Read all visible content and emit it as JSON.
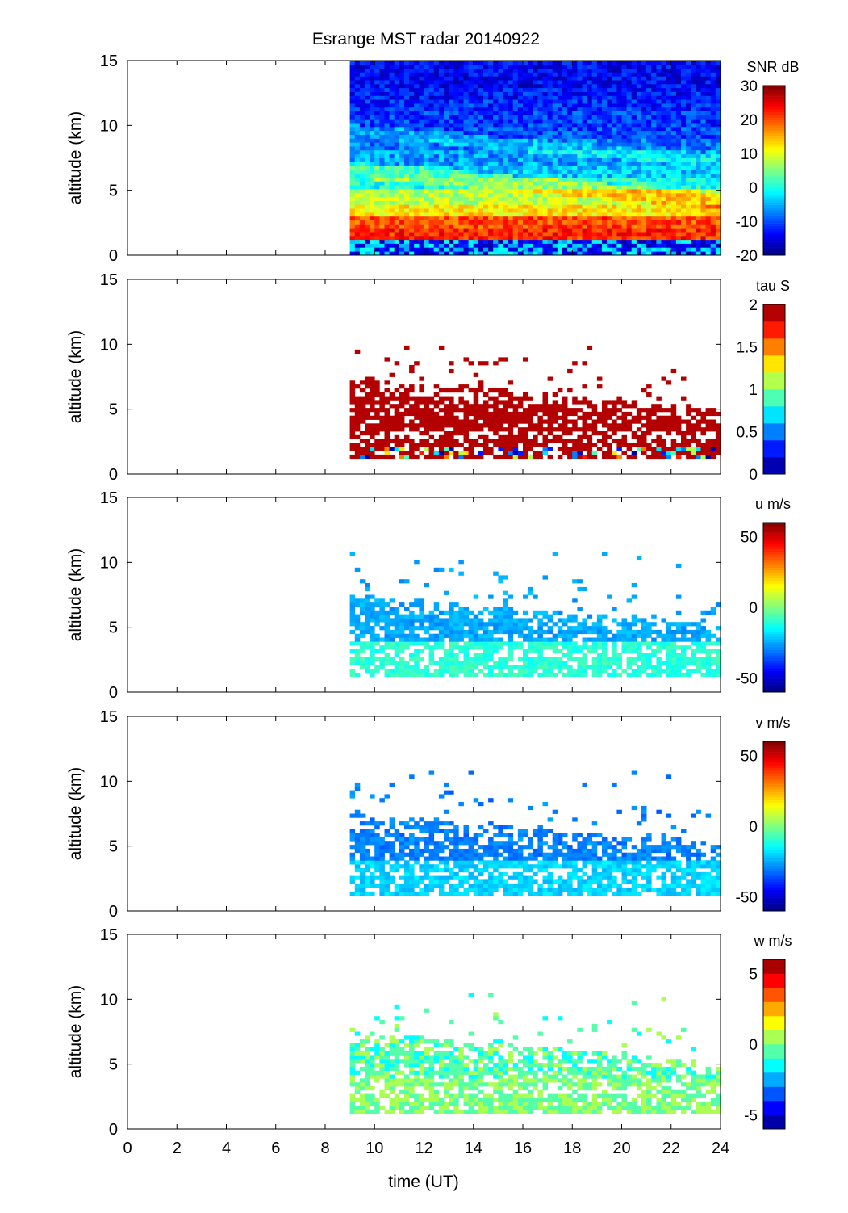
{
  "chart_data": {
    "type": "heatmap",
    "title": "Esrange MST radar 20140922",
    "xlabel": "time (UT)",
    "xlim": [
      0,
      24
    ],
    "xticks": [
      "0",
      "2",
      "4",
      "6",
      "8",
      "10",
      "12",
      "14",
      "16",
      "18",
      "20",
      "22",
      "24"
    ],
    "data_start_time": 9,
    "panels": [
      {
        "ylabel": "altitude (km)",
        "ylim": [
          0,
          15
        ],
        "yticks": [
          "0",
          "5",
          "10",
          "15"
        ],
        "colorbar_label": "SNR dB",
        "clim": [
          -20,
          30
        ],
        "cticks": [
          "30",
          "20",
          "10",
          "0",
          "-10",
          "-20"
        ],
        "cticks_values": [
          30,
          20,
          10,
          0,
          -10,
          -20
        ],
        "levels": 64,
        "coverage": "full",
        "profile_alt_km": [
          0.5,
          1.5,
          2.5,
          3.5,
          4.5,
          5.5,
          6.5,
          7.5,
          8.5,
          9.5,
          10.5,
          11.5,
          12.5,
          13.5,
          14.5
        ],
        "profile_values": [
          -12,
          22,
          20,
          12,
          8,
          0,
          -4,
          -6,
          -8,
          -10,
          -11,
          -12,
          -13,
          -14,
          -14
        ]
      },
      {
        "ylabel": "altitude (km)",
        "ylim": [
          0,
          15
        ],
        "yticks": [
          "0",
          "5",
          "10",
          "15"
        ],
        "colorbar_label": "tau S",
        "clim": [
          0,
          2
        ],
        "cticks": [
          "2",
          "1.5",
          "1",
          "0.5",
          "0"
        ],
        "cticks_values": [
          2,
          1.5,
          1,
          0.5,
          0
        ],
        "levels": 10,
        "coverage": "sparse",
        "typical_value": 2
      },
      {
        "ylabel": "altitude (km)",
        "ylim": [
          0,
          15
        ],
        "yticks": [
          "0",
          "5",
          "10",
          "15"
        ],
        "colorbar_label": "u m/s",
        "clim": [
          -60,
          60
        ],
        "cticks": [
          "50",
          "0",
          "-50"
        ],
        "cticks_values": [
          50,
          0,
          -50
        ],
        "levels": 64,
        "coverage": "sparse",
        "low_value": -10,
        "high_value": -25
      },
      {
        "ylabel": "altitude (km)",
        "ylim": [
          0,
          15
        ],
        "yticks": [
          "0",
          "5",
          "10",
          "15"
        ],
        "colorbar_label": "v m/s",
        "clim": [
          -60,
          60
        ],
        "cticks": [
          "50",
          "0",
          "-50"
        ],
        "cticks_values": [
          50,
          0,
          -50
        ],
        "levels": 64,
        "coverage": "sparse",
        "low_value": -20,
        "high_value": -30
      },
      {
        "ylabel": "altitude (km)",
        "ylim": [
          0,
          15
        ],
        "yticks": [
          "0",
          "5",
          "10",
          "15"
        ],
        "colorbar_label": "w m/s",
        "clim": [
          -6,
          6
        ],
        "cticks": [
          "5",
          "0",
          "-5"
        ],
        "cticks_values": [
          5,
          0,
          -5
        ],
        "levels": 12,
        "coverage": "sparse",
        "low_value": 0,
        "high_value": -0.5
      }
    ]
  }
}
